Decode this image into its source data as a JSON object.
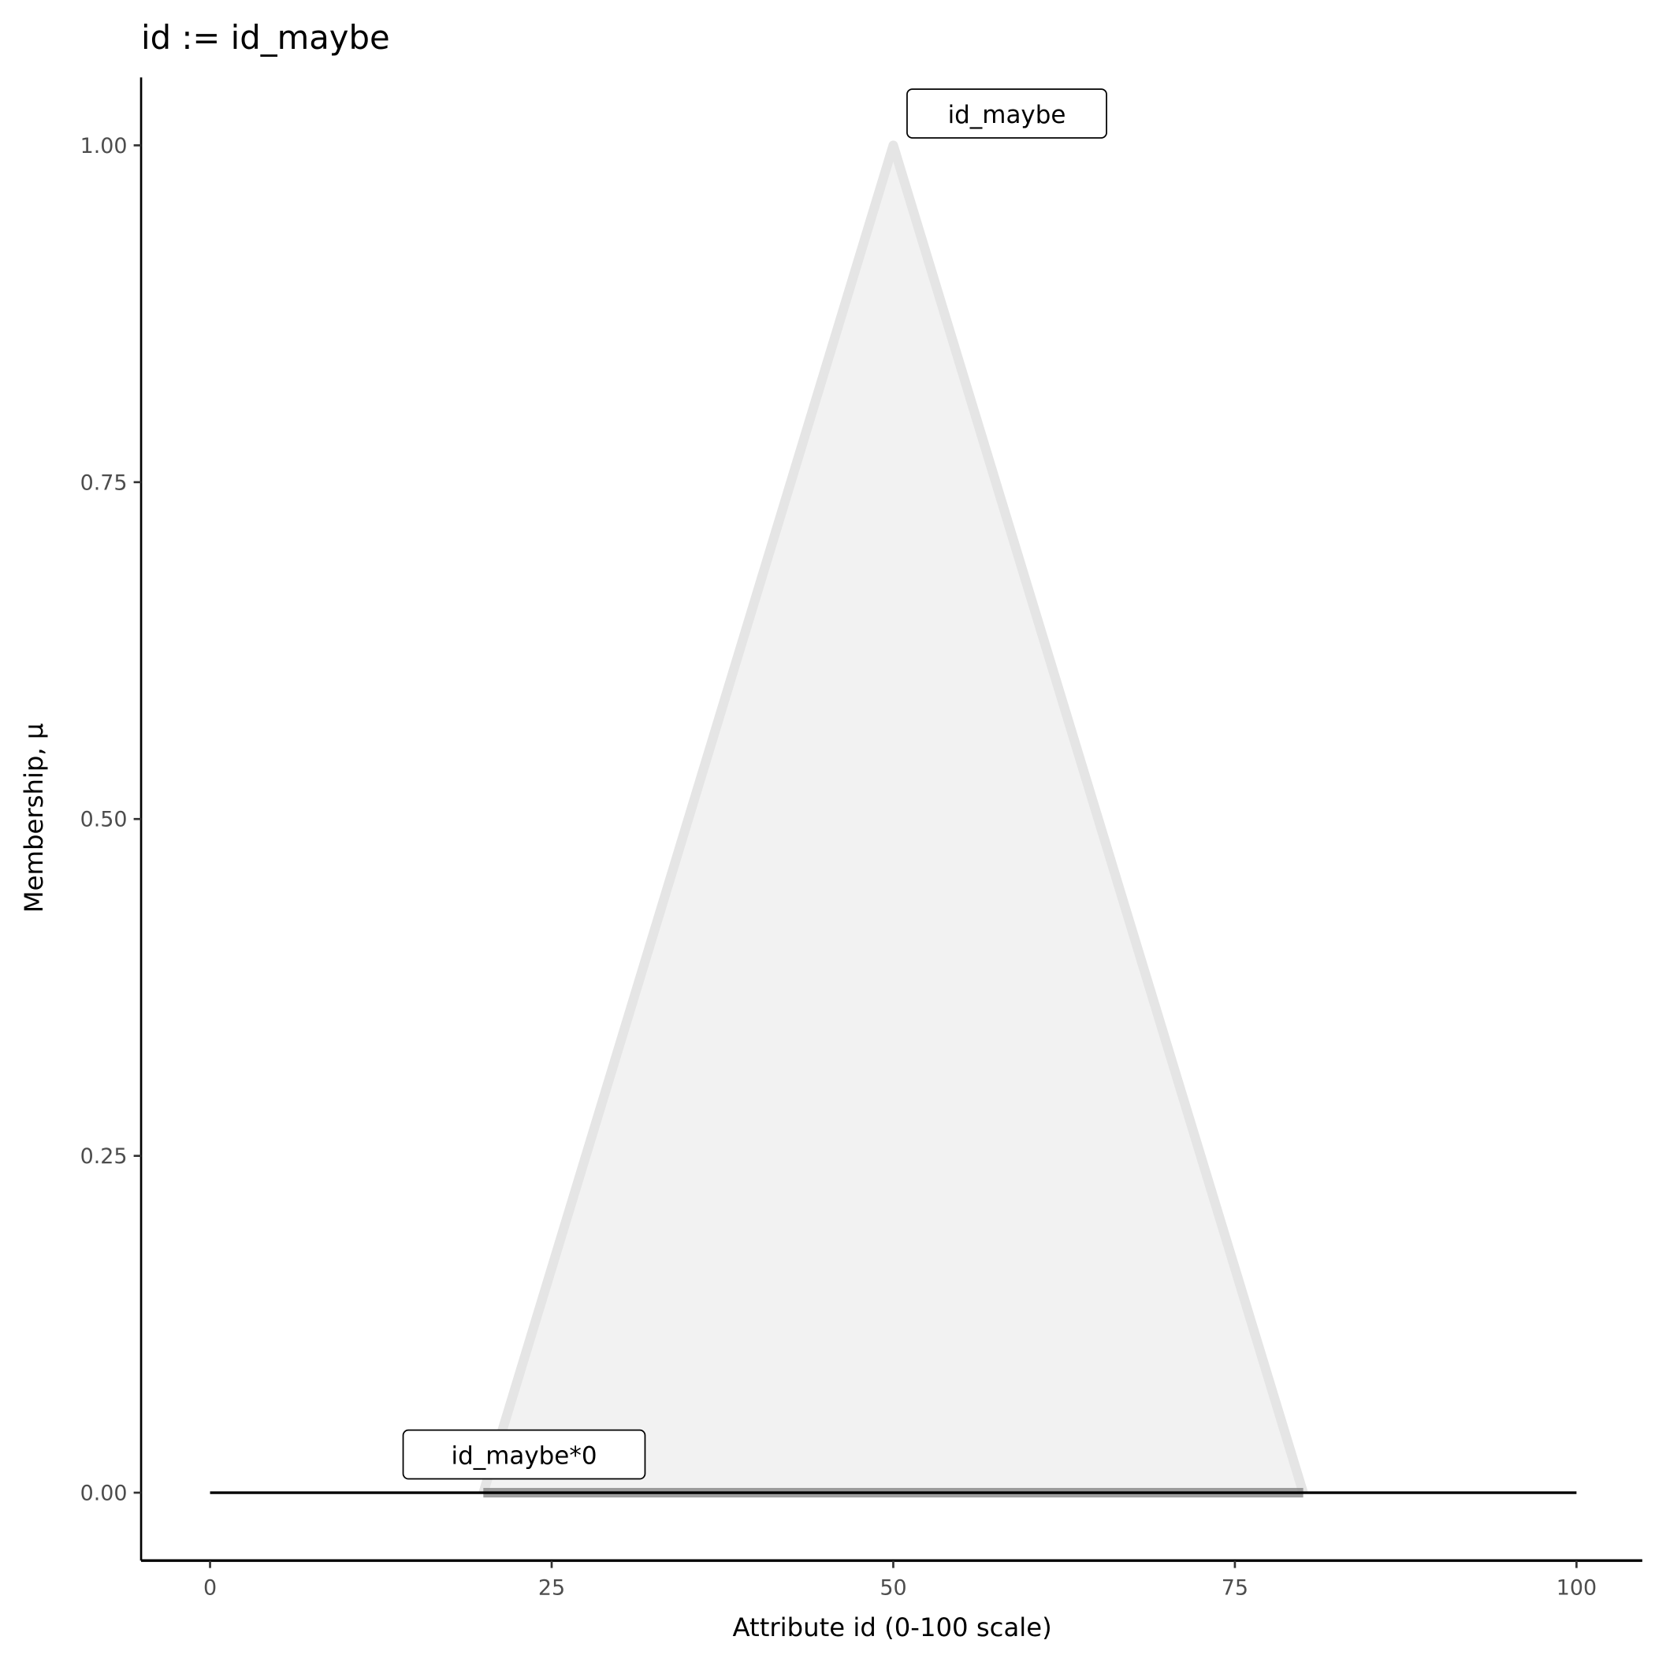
{
  "chart_data": {
    "type": "area",
    "title": "id := id_maybe",
    "xlabel": "Attribute id (0-100 scale)",
    "ylabel": "Membership, μ",
    "xlim": [
      -5,
      105
    ],
    "ylim": [
      -0.05,
      1.05
    ],
    "x_ticks": [
      0,
      25,
      50,
      75,
      100
    ],
    "x_tick_labels": [
      "0",
      "25",
      "50",
      "75",
      "100"
    ],
    "y_ticks": [
      0,
      0.25,
      0.5,
      0.75,
      1
    ],
    "y_tick_labels": [
      "0.00",
      "0.25",
      "0.50",
      "0.75",
      "1.00"
    ],
    "grid": false,
    "series": [
      {
        "name": "id_maybe",
        "x": [
          20,
          50,
          80
        ],
        "y": [
          0,
          1,
          0
        ],
        "fill": "#f2f2f2",
        "stroke": "#e5e5e5"
      },
      {
        "name": "id_maybe*0",
        "x": [
          0,
          100
        ],
        "y": [
          0,
          0
        ],
        "stroke": "#000000"
      }
    ],
    "annotations": [
      {
        "text": "id_maybe",
        "x": 50,
        "y": 1
      },
      {
        "text": "id_maybe*0",
        "x": 15,
        "y": 0
      }
    ]
  }
}
